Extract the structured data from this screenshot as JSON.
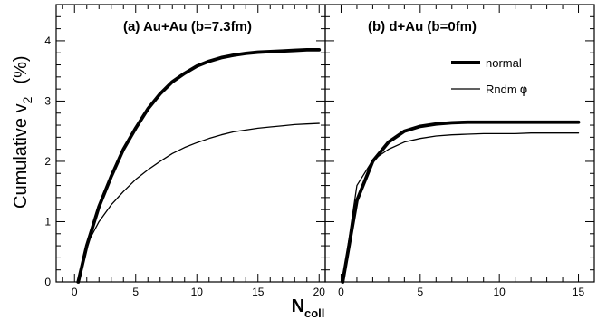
{
  "chart_data": [
    {
      "type": "line",
      "panel": "a",
      "title": "(a) Au+Au (b=7.3fm)",
      "xlabel": "N",
      "xlabel_subscript": "coll",
      "ylabel": "Cumulative v",
      "ylabel_subscript": "2",
      "ylabel_unit": "(%)",
      "xlim": [
        -1.5,
        20.5
      ],
      "ylim": [
        0,
        4.6
      ],
      "xticks": [
        0,
        5,
        10,
        15,
        20
      ],
      "yticks": [
        0,
        1,
        2,
        3,
        4
      ],
      "series": [
        {
          "name": "normal",
          "style": "thick",
          "x": [
            0.3,
            1,
            2,
            3,
            4,
            5,
            6,
            7,
            8,
            9,
            10,
            11,
            12,
            13,
            14,
            15,
            16,
            17,
            18,
            19,
            20
          ],
          "y": [
            0,
            0.6,
            1.25,
            1.75,
            2.2,
            2.55,
            2.87,
            3.12,
            3.32,
            3.46,
            3.58,
            3.66,
            3.72,
            3.76,
            3.79,
            3.81,
            3.82,
            3.83,
            3.84,
            3.85,
            3.85
          ]
        },
        {
          "name": "Rndm φ",
          "style": "thin",
          "x": [
            0.3,
            1,
            2,
            3,
            4,
            5,
            6,
            7,
            8,
            9,
            10,
            11,
            12,
            13,
            14,
            15,
            16,
            17,
            18,
            19,
            20
          ],
          "y": [
            0,
            0.62,
            1.0,
            1.28,
            1.5,
            1.7,
            1.86,
            2.0,
            2.13,
            2.23,
            2.31,
            2.38,
            2.44,
            2.49,
            2.52,
            2.55,
            2.57,
            2.59,
            2.61,
            2.62,
            2.63
          ]
        }
      ]
    },
    {
      "type": "line",
      "panel": "b",
      "title": "(b) d+Au (b=0fm)",
      "xlim": [
        -1,
        16
      ],
      "ylim": [
        0,
        4.6
      ],
      "xticks": [
        0,
        5,
        10,
        15
      ],
      "legend": {
        "position": "top-right",
        "entries": [
          "normal",
          "Rndm"
        ],
        "phi_symbol": "φ"
      },
      "series": [
        {
          "name": "normal",
          "style": "thick",
          "x": [
            0.1,
            1,
            2,
            3,
            4,
            5,
            6,
            7,
            8,
            9,
            10,
            11,
            12,
            13,
            14,
            15
          ],
          "y": [
            0,
            1.35,
            2.0,
            2.32,
            2.5,
            2.58,
            2.62,
            2.64,
            2.65,
            2.65,
            2.65,
            2.65,
            2.65,
            2.65,
            2.65,
            2.65
          ]
        },
        {
          "name": "Rndm φ",
          "style": "thin",
          "x": [
            0.1,
            1,
            2,
            3,
            4,
            5,
            6,
            7,
            8,
            9,
            10,
            11,
            12,
            13,
            14,
            15
          ],
          "y": [
            0,
            1.6,
            2.02,
            2.2,
            2.32,
            2.38,
            2.42,
            2.44,
            2.45,
            2.46,
            2.46,
            2.46,
            2.47,
            2.47,
            2.47,
            2.47
          ]
        }
      ]
    }
  ]
}
